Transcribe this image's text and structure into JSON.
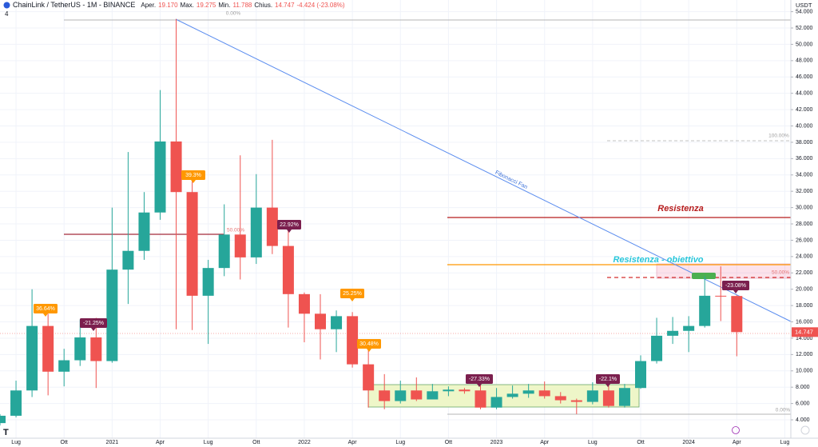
{
  "header": {
    "symbol": "ChainLink / TetherUS - 1M - BINANCE",
    "open_label": "Aper.",
    "open": "19.170",
    "high_label": "Max.",
    "high": "19.275",
    "low_label": "Min.",
    "low": "11.788",
    "close_label": "Chius.",
    "close": "14.747",
    "change": "-4.424 (-23.08%)",
    "indicator_count": "4"
  },
  "chart_data": {
    "type": "candlestick",
    "currency": "USDT",
    "x": [
      "2020-06",
      "2020-07",
      "2020-08",
      "2020-09",
      "2020-10",
      "2020-11",
      "2020-12",
      "2021-01",
      "2021-02",
      "2021-03",
      "2021-04",
      "2021-05",
      "2021-06",
      "2021-07",
      "2021-08",
      "2021-09",
      "2021-10",
      "2021-11",
      "2021-12",
      "2022-01",
      "2022-02",
      "2022-03",
      "2022-04",
      "2022-05",
      "2022-06",
      "2022-07",
      "2022-08",
      "2022-09",
      "2022-10",
      "2022-11",
      "2022-12",
      "2023-01",
      "2023-02",
      "2023-03",
      "2023-04",
      "2023-05",
      "2023-06",
      "2023-07",
      "2023-08",
      "2023-09",
      "2023-10",
      "2023-11",
      "2023-12",
      "2024-01",
      "2024-02",
      "2024-03",
      "2024-04"
    ],
    "open": [
      3.6,
      4.5,
      7.6,
      15.5,
      9.9,
      11.3,
      14.1,
      11.2,
      22.4,
      24.7,
      29.4,
      38.1,
      31.9,
      19.2,
      22.6,
      26.7,
      23.9,
      30.0,
      25.3,
      19.4,
      17.0,
      15.1,
      16.7,
      10.8,
      7.6,
      6.3,
      7.6,
      6.5,
      7.5,
      7.7,
      7.6,
      5.5,
      6.8,
      7.2,
      7.6,
      6.9,
      6.4,
      6.2,
      7.6,
      5.7,
      7.9,
      11.2,
      14.3,
      14.9,
      15.5,
      19.2,
      19.17
    ],
    "high": [
      4.7,
      8.8,
      20.0,
      17.0,
      12.7,
      16.3,
      16.5,
      30.0,
      36.8,
      31.9,
      44.4,
      53.1,
      33.4,
      23.6,
      30.4,
      36.4,
      34.1,
      38.3,
      28.2,
      19.6,
      19.4,
      17.4,
      17.2,
      12.5,
      9.6,
      8.8,
      9.2,
      8.4,
      8.1,
      7.9,
      8.4,
      7.9,
      8.2,
      8.4,
      8.7,
      7.4,
      6.6,
      8.6,
      8.2,
      8.4,
      11.9,
      16.5,
      16.6,
      16.7,
      21.6,
      22.8,
      19.275
    ],
    "low": [
      3.3,
      4.3,
      6.8,
      7.0,
      8.1,
      10.6,
      7.9,
      11.0,
      18.2,
      23.6,
      28.5,
      15.1,
      15.0,
      13.3,
      21.6,
      21.2,
      23.1,
      24.3,
      15.3,
      13.5,
      11.4,
      12.3,
      10.4,
      5.5,
      5.3,
      6.0,
      6.3,
      6.5,
      6.9,
      7.2,
      5.3,
      5.3,
      6.6,
      6.7,
      6.6,
      6.0,
      4.7,
      5.9,
      5.5,
      5.5,
      7.8,
      10.9,
      13.3,
      12.3,
      15.3,
      16.1,
      11.788
    ],
    "close": [
      4.5,
      7.6,
      15.5,
      9.9,
      11.3,
      14.1,
      11.2,
      22.4,
      24.7,
      29.4,
      38.1,
      31.9,
      19.2,
      22.6,
      26.7,
      23.9,
      30.0,
      25.3,
      19.4,
      17.0,
      15.1,
      16.7,
      10.8,
      7.6,
      6.3,
      7.6,
      6.5,
      7.5,
      7.7,
      7.5,
      5.5,
      6.8,
      7.2,
      7.6,
      6.9,
      6.4,
      6.2,
      7.6,
      5.7,
      7.9,
      11.2,
      14.3,
      14.9,
      15.5,
      19.2,
      19.17,
      14.747
    ],
    "up_color": "#26a69a",
    "down_color": "#ef5350",
    "last_label": "14.747",
    "ylim": [
      1.75,
      55.43
    ],
    "yticks": [
      {
        "value": 4,
        "label": "4.000"
      },
      {
        "value": 6,
        "label": "6.000"
      },
      {
        "value": 8,
        "label": "8.000"
      },
      {
        "value": 10,
        "label": "10.000"
      },
      {
        "value": 12,
        "label": "12.000"
      },
      {
        "value": 14,
        "label": "14.000"
      },
      {
        "value": 16,
        "label": "16.000"
      },
      {
        "value": 18,
        "label": "18.000"
      },
      {
        "value": 20,
        "label": "20.000"
      },
      {
        "value": 22,
        "label": "22.000"
      },
      {
        "value": 24,
        "label": "24.000"
      },
      {
        "value": 26,
        "label": "26.000"
      },
      {
        "value": 28,
        "label": "28.000"
      },
      {
        "value": 30,
        "label": "30.000"
      },
      {
        "value": 32,
        "label": "32.000"
      },
      {
        "value": 34,
        "label": "34.000"
      },
      {
        "value": 36,
        "label": "36.000"
      },
      {
        "value": 38,
        "label": "38.000"
      },
      {
        "value": 40,
        "label": "40.000"
      },
      {
        "value": 42,
        "label": "42.000"
      },
      {
        "value": 44,
        "label": "44.000"
      },
      {
        "value": 46,
        "label": "46.000"
      },
      {
        "value": 48,
        "label": "48.000"
      },
      {
        "value": 50,
        "label": "50.000"
      },
      {
        "value": 52,
        "label": "52.000"
      },
      {
        "value": 54,
        "label": "54.000"
      }
    ],
    "xticks": [
      {
        "value": "2020-07",
        "label": "Lug"
      },
      {
        "value": "2020-10",
        "label": "Ott"
      },
      {
        "value": "2021-01",
        "label": "2021"
      },
      {
        "value": "2021-04",
        "label": "Apr"
      },
      {
        "value": "2021-07",
        "label": "Lug"
      },
      {
        "value": "2021-10",
        "label": "Ott"
      },
      {
        "value": "2022-01",
        "label": "2022"
      },
      {
        "value": "2022-04",
        "label": "Apr"
      },
      {
        "value": "2022-07",
        "label": "Lug"
      },
      {
        "value": "2022-10",
        "label": "Ott"
      },
      {
        "value": "2023-01",
        "label": "2023"
      },
      {
        "value": "2023-04",
        "label": "Apr"
      },
      {
        "value": "2023-07",
        "label": "Lug"
      },
      {
        "value": "2023-10",
        "label": "Ott"
      },
      {
        "value": "2024-01",
        "label": "2024"
      },
      {
        "value": "2024-04",
        "label": "Apr"
      },
      {
        "value": "2024-07",
        "label": "Lug"
      }
    ],
    "grid": true,
    "annotations": [
      {
        "text": "36.64%",
        "kind": "gain"
      },
      {
        "text": "-21.25%",
        "kind": "loss"
      },
      {
        "text": "39.3%",
        "kind": "gain"
      },
      {
        "text": "22.92%",
        "kind": "loss"
      },
      {
        "text": "25.25%",
        "kind": "gain"
      },
      {
        "text": "30.48%",
        "kind": "gain"
      },
      {
        "text": "-27.33%",
        "kind": "loss"
      },
      {
        "text": "-22.1%",
        "kind": "loss"
      },
      {
        "text": "-23.08%",
        "kind": "loss"
      },
      {
        "text": "50.00%",
        "kind": "fib-red"
      },
      {
        "text": "0.00%",
        "kind": "fib"
      },
      {
        "text": "100.00%",
        "kind": "fib"
      },
      {
        "text": "50.00%",
        "kind": "fib-red"
      },
      {
        "text": "0.00%",
        "kind": "fib"
      },
      {
        "text": "Fibonacci Fan",
        "kind": "fan"
      },
      {
        "text": "Resistenza",
        "kind": "resistance"
      },
      {
        "text": "Resistenza - obiettivo",
        "kind": "target"
      }
    ]
  }
}
